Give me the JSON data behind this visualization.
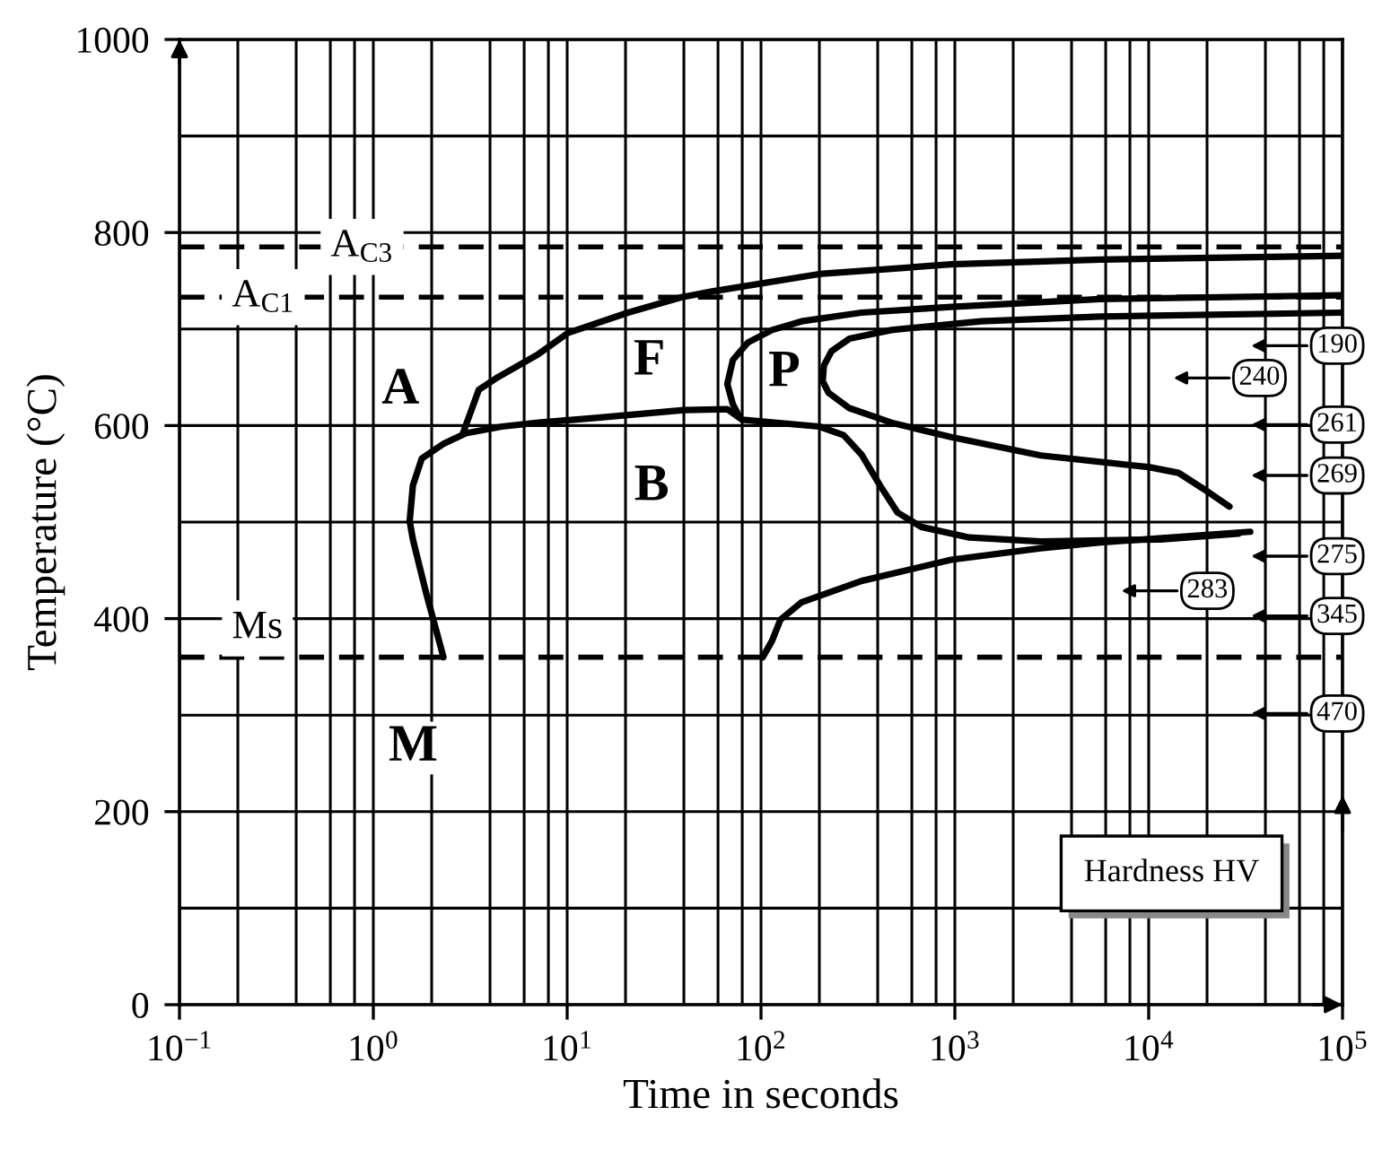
{
  "chart_data": {
    "type": "line",
    "xlabel": "Time in seconds",
    "ylabel": "Temperature (°C)",
    "log": "x",
    "grid": true,
    "xlim": [
      0.1,
      100000
    ],
    "ylim": [
      0,
      1000
    ],
    "xticks": [
      {
        "value": 0.1,
        "label": "10$^{−1}$"
      },
      {
        "value": 0.2,
        "label": null
      },
      {
        "value": 0.4,
        "label": null
      },
      {
        "value": 0.6,
        "label": null
      },
      {
        "value": 0.8,
        "label": null
      },
      {
        "value": 1,
        "label": "10$^{0}$"
      },
      {
        "value": 2,
        "label": null
      },
      {
        "value": 4,
        "label": null
      },
      {
        "value": 6,
        "label": null
      },
      {
        "value": 8,
        "label": null
      },
      {
        "value": 10,
        "label": "10$^{1}$"
      },
      {
        "value": 20,
        "label": null
      },
      {
        "value": 40,
        "label": null
      },
      {
        "value": 60,
        "label": null
      },
      {
        "value": 80,
        "label": null
      },
      {
        "value": 100,
        "label": "10$^{2}$"
      },
      {
        "value": 200,
        "label": null
      },
      {
        "value": 400,
        "label": null
      },
      {
        "value": 600,
        "label": null
      },
      {
        "value": 800,
        "label": null
      },
      {
        "value": 1000,
        "label": "10$^{3}$"
      },
      {
        "value": 2000,
        "label": null
      },
      {
        "value": 4000,
        "label": null
      },
      {
        "value": 6000,
        "label": null
      },
      {
        "value": 8000,
        "label": null
      },
      {
        "value": 10000,
        "label": "10$^{4}$"
      },
      {
        "value": 20000,
        "label": null
      },
      {
        "value": 40000,
        "label": null
      },
      {
        "value": 60000,
        "label": null
      },
      {
        "value": 80000,
        "label": null
      },
      {
        "value": 100000,
        "label": "10$^{5}$"
      }
    ],
    "yticks": [
      0,
      {
        "value": 100,
        "label": null
      },
      200,
      {
        "value": 300,
        "label": null
      },
      400,
      {
        "value": 500,
        "label": null
      },
      600,
      {
        "value": 700,
        "label": null
      },
      800,
      {
        "value": 900,
        "label": null
      },
      1000
    ],
    "series": [
      {
        "color": "#000000",
        "x": [
          2.3,
          1.87,
          1.6,
          1.54,
          1.6,
          1.78,
          2.3,
          3.0,
          4.6,
          7.1,
          14,
          40,
          67,
          80,
          200,
          267,
          330,
          411,
          506,
          671,
          1190,
          2780,
          11500,
          29000
        ],
        "values": [
          360,
          427,
          482,
          501,
          538,
          566,
          581,
          592,
          599,
          603,
          608,
          616,
          617,
          606,
          599,
          590,
          570,
          538,
          510,
          495,
          484,
          480,
          482,
          488
        ]
      },
      {
        "color": "#000000",
        "x": [
          2.9,
          3.5,
          4.3,
          7.1,
          10.1,
          20.6,
          39,
          56,
          200,
          957,
          5620,
          100000
        ],
        "values": [
          592,
          637,
          649,
          674,
          696,
          717,
          733,
          739,
          757,
          767,
          772,
          776
        ]
      },
      {
        "color": "#000000",
        "x": [
          100000,
          5620,
          957,
          330,
          162,
          114,
          85.5,
          71.6,
          67,
          71.6,
          76
        ],
        "values": [
          735,
          731,
          723,
          717,
          708,
          699,
          686,
          668,
          643,
          622,
          612
        ]
      },
      {
        "color": "#000000",
        "x": [
          100000,
          5620,
          1368,
          471,
          286,
          231,
          211,
          208,
          223,
          286,
          471,
          957,
          2780,
          10000,
          14260,
          18970,
          26100
        ],
        "values": [
          717,
          713,
          708,
          699,
          690,
          677,
          662,
          646,
          634,
          618,
          603,
          588,
          569,
          557,
          551,
          535,
          516
        ]
      },
      {
        "color": "#000000",
        "x": [
          102,
          114,
          126,
          162,
          330,
          957,
          2780,
          5660,
          33400
        ],
        "values": [
          360,
          377,
          399,
          417,
          439,
          461,
          473,
          479,
          490
        ]
      }
    ],
    "line_style": "solid",
    "ref_lines": [
      {
        "axis": "y",
        "value": 785,
        "label": "A$_{C3}$",
        "color": "#000000",
        "line_style": "dashed"
      },
      {
        "axis": "y",
        "value": 733,
        "label": "A$_{C1}$",
        "color": "#000000",
        "line_style": "dashed"
      },
      {
        "axis": "y",
        "value": 360,
        "label": "Ms",
        "color": "#000000",
        "line_style": "dashed"
      }
    ],
    "annotations": [
      "A",
      "F",
      "P",
      "B",
      "M",
      "Hardness HV",
      "190",
      "240",
      "261",
      "269",
      "275",
      "283",
      "345",
      "470"
    ]
  }
}
